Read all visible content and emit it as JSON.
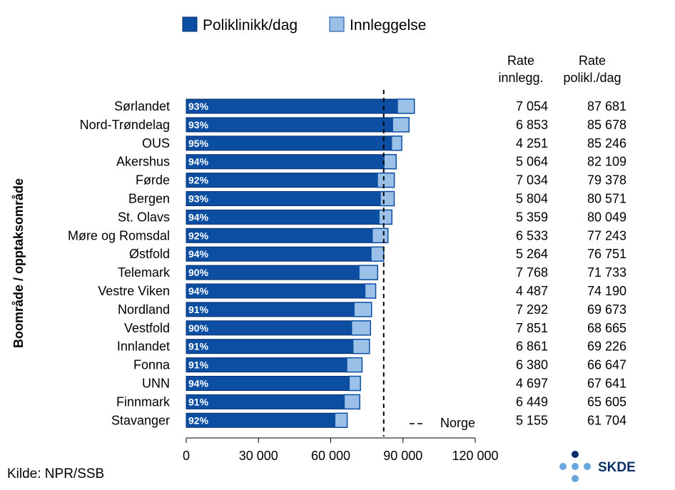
{
  "chart_data": {
    "type": "bar",
    "orientation": "horizontal",
    "stacked": true,
    "ylabel": "Boområde / opptaksområde",
    "xlabel": "",
    "xlim": [
      0,
      120000
    ],
    "x_ticks": [
      "0",
      "30 000",
      "60 000",
      "90 000",
      "120 000"
    ],
    "x_tick_values": [
      0,
      30000,
      60000,
      90000,
      120000
    ],
    "legend_placement": "top",
    "series": [
      {
        "name": "Poliklinikk/dag",
        "color": "#0b4ea2",
        "values": [
          87681,
          85678,
          85246,
          82109,
          79378,
          80571,
          80049,
          77243,
          76751,
          71733,
          74190,
          69673,
          68665,
          69226,
          66647,
          67641,
          65605,
          61704
        ]
      },
      {
        "name": "Innleggelse",
        "color": "#9cc1e8",
        "values": [
          7054,
          6853,
          4251,
          5064,
          7034,
          5804,
          5359,
          6533,
          5264,
          7768,
          4487,
          7292,
          7851,
          6861,
          6380,
          4697,
          6449,
          5155
        ]
      }
    ],
    "categories": [
      "Sørlandet",
      "Nord-Trøndelag",
      "OUS",
      "Akershus",
      "Førde",
      "Bergen",
      "St. Olavs",
      "Møre og Romsdal",
      "Østfold",
      "Telemark",
      "Vestre Viken",
      "Nordland",
      "Vestfold",
      "Innlandet",
      "Fonna",
      "UNN",
      "Finnmark",
      "Stavanger"
    ],
    "percent_labels": [
      "93%",
      "93%",
      "95%",
      "94%",
      "92%",
      "93%",
      "94%",
      "92%",
      "94%",
      "90%",
      "94%",
      "91%",
      "90%",
      "91%",
      "91%",
      "94%",
      "91%",
      "92%"
    ],
    "table": {
      "header_innlegg": [
        "Rate",
        "innlegg."
      ],
      "header_polikl": [
        "Rate",
        "polikl./dag"
      ],
      "innlegg": [
        "7 054",
        "6 853",
        "4 251",
        "5 064",
        "7 034",
        "5 804",
        "5 359",
        "6 533",
        "5 264",
        "7 768",
        "4 487",
        "7 292",
        "7 851",
        "6 861",
        "6 380",
        "4 697",
        "6 449",
        "5 155"
      ],
      "polikl": [
        "87 681",
        "85 678",
        "85 246",
        "82 109",
        "79 378",
        "80 571",
        "80 049",
        "77 243",
        "76 751",
        "71 733",
        "74 190",
        "69 673",
        "68 665",
        "69 226",
        "66 647",
        "67 641",
        "65 605",
        "61 704"
      ]
    },
    "reference_line": {
      "label": "Norge",
      "value": 82000,
      "legend_symbol": "– –"
    }
  },
  "source": "Kilde: NPR/SSB",
  "logo": {
    "text": "SKDE"
  },
  "colors": {
    "dark_blue": "#0b4ea2",
    "light_blue": "#9cc1e8",
    "logo_blue": "#0b2f6b",
    "logo_dot": "#6aa6de"
  }
}
